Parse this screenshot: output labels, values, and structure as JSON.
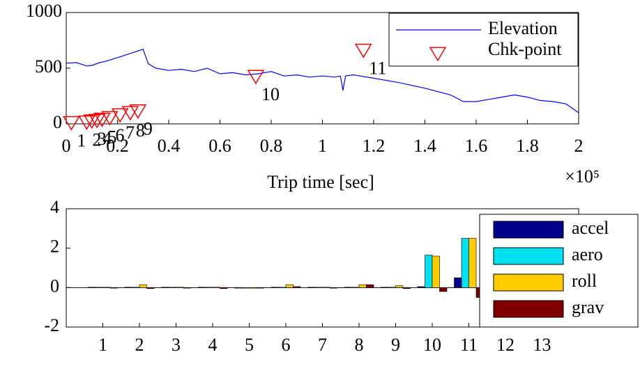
{
  "chart_data": [
    {
      "type": "line",
      "xlabel": "Trip time [sec]",
      "x_multiplier": "×10⁵",
      "xlim": [
        0,
        200000
      ],
      "ylim": [
        0,
        1000
      ],
      "xticks": [
        0,
        {
          "value": 20000,
          "label": "0.2"
        },
        {
          "value": 40000,
          "label": "0.4"
        },
        {
          "value": 60000,
          "label": "0.6"
        },
        {
          "value": 80000,
          "label": "0.8"
        },
        {
          "value": 100000,
          "label": "1"
        },
        {
          "value": 120000,
          "label": "1.2"
        },
        {
          "value": 140000,
          "label": "1.4"
        },
        {
          "value": 160000,
          "label": "1.6"
        },
        {
          "value": 180000,
          "label": "1.8"
        },
        {
          "value": 200000,
          "label": "2"
        }
      ],
      "yticks": [
        0,
        500,
        1000
      ],
      "legend": "upper right",
      "series": [
        {
          "name": "Elevation",
          "color": "#0000ff",
          "x": [
            0,
            4000,
            8000,
            10000,
            13000,
            15000,
            18000,
            22000,
            26000,
            30000,
            32000,
            35000,
            40000,
            45000,
            50000,
            55000,
            60000,
            65000,
            70000,
            75000,
            80000,
            85000,
            90000,
            95000,
            100000,
            105000,
            107000,
            108000,
            109000,
            112000,
            120000,
            130000,
            140000,
            150000,
            155000,
            160000,
            165000,
            170000,
            175000,
            180000,
            185000,
            190000,
            195000,
            200000
          ],
          "values": [
            545,
            550,
            520,
            525,
            550,
            560,
            580,
            610,
            640,
            670,
            540,
            500,
            480,
            490,
            470,
            500,
            450,
            460,
            440,
            450,
            470,
            430,
            440,
            420,
            430,
            420,
            430,
            300,
            430,
            440,
            410,
            370,
            320,
            260,
            200,
            200,
            220,
            240,
            260,
            240,
            210,
            200,
            180,
            100
          ]
        },
        {
          "name": "Chk-point",
          "type": "scatter",
          "color": "#ff0000",
          "x": [
            2000,
            8000,
            10000,
            12000,
            14000,
            17000,
            21000,
            25000,
            28000,
            74000,
            116000
          ],
          "values": [
            10,
            15,
            25,
            30,
            40,
            55,
            80,
            100,
            115,
            425,
            660
          ],
          "labels": [
            "1",
            "2",
            "3",
            "4",
            "5",
            "6",
            "7",
            "8",
            "9",
            "10",
            "11"
          ]
        }
      ]
    },
    {
      "type": "bar",
      "categories": [
        "1",
        "2",
        "3",
        "4",
        "5",
        "6",
        "7",
        "8",
        "9",
        "10",
        "11",
        "12",
        "13"
      ],
      "ylim": [
        -2,
        4
      ],
      "yticks": [
        -2,
        0,
        2,
        4
      ],
      "legend": "right",
      "series": [
        {
          "name": "accel",
          "color": "#00008b",
          "values": [
            0.02,
            0.02,
            0.02,
            0.02,
            0,
            0.02,
            0.02,
            0.02,
            0.02,
            0.05,
            0.5,
            0,
            0
          ]
        },
        {
          "name": "aero",
          "color": "#00e0f0",
          "values": [
            0.02,
            0.02,
            0.02,
            0.02,
            0,
            0.02,
            0.02,
            0.02,
            0.02,
            1.65,
            2.5,
            0,
            0
          ]
        },
        {
          "name": "roll",
          "color": "#ffcc00",
          "values": [
            0.02,
            0.15,
            0.02,
            0.02,
            0,
            0.15,
            0.02,
            0.15,
            0.1,
            1.6,
            2.5,
            0,
            0
          ]
        },
        {
          "name": "grav",
          "color": "#800000",
          "values": [
            0,
            -0.05,
            0,
            -0.05,
            0,
            0.05,
            0,
            0.15,
            -0.05,
            -0.2,
            -0.5,
            0,
            0
          ]
        }
      ]
    }
  ]
}
